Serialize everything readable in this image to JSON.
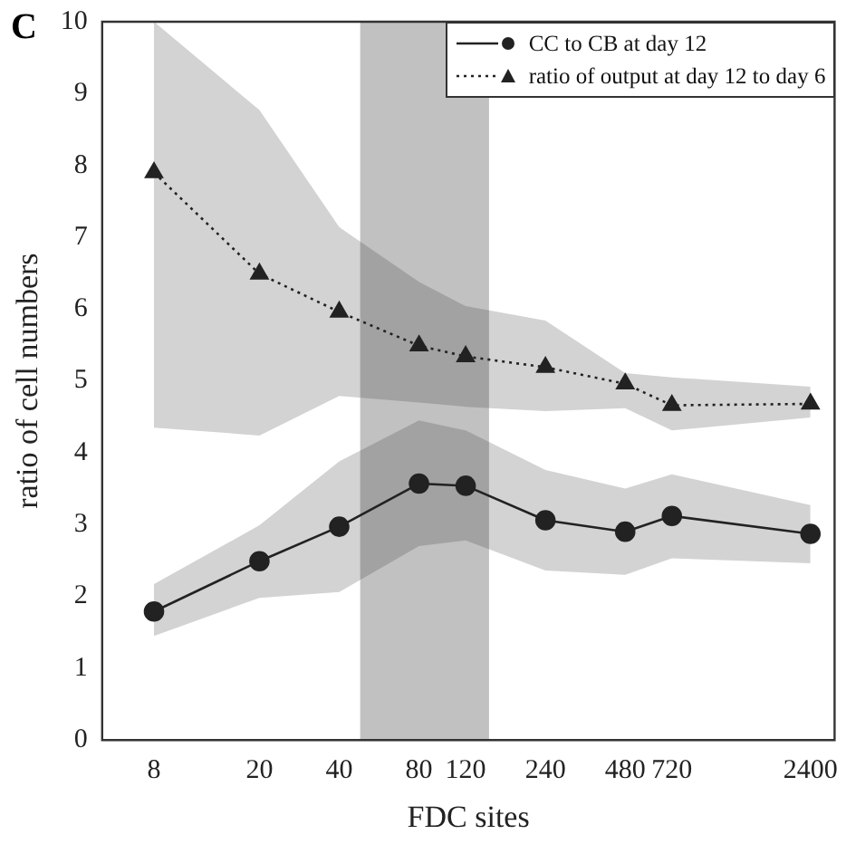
{
  "chart_data": {
    "type": "line",
    "xlabel": "FDC sites",
    "ylabel": "ratio of cell numbers",
    "annotations": [
      "C"
    ],
    "log": "x",
    "xlim": [
      5.1,
      2960
    ],
    "xticks": [
      8,
      20,
      40,
      80,
      120,
      240,
      480,
      720,
      2400
    ],
    "ylim": [
      0,
      10
    ],
    "yticks": [
      0,
      1,
      2,
      3,
      4,
      5,
      6,
      7,
      8,
      9,
      10
    ],
    "x": [
      8,
      20,
      40,
      80,
      120,
      240,
      480,
      720,
      2400
    ],
    "legend": "top right",
    "grid": false,
    "bands": [
      {
        "axis": "x",
        "from": 48,
        "to": 147,
        "color": "#333333"
      }
    ],
    "series": [
      {
        "name": "CC to CB at day 12",
        "color": "#222222",
        "marker": "circle",
        "line_style": "solid",
        "values": [
          1.79,
          2.49,
          2.97,
          3.57,
          3.54,
          3.06,
          2.9,
          3.12,
          2.87
        ],
        "lower": [
          1.45,
          1.98,
          2.06,
          2.7,
          2.78,
          2.36,
          2.3,
          2.53,
          2.46
        ],
        "upper": [
          2.17,
          2.99,
          3.88,
          4.45,
          4.31,
          3.76,
          3.5,
          3.7,
          3.27
        ]
      },
      {
        "name": "ratio of output at day 12 to day 6",
        "color": "#222222",
        "marker": "triangle",
        "line_style": "dotted",
        "values": [
          7.9,
          6.49,
          5.96,
          5.49,
          5.34,
          5.19,
          4.96,
          4.66,
          4.68
        ],
        "lower": [
          4.35,
          4.24,
          4.79,
          4.7,
          4.64,
          4.58,
          4.62,
          4.31,
          4.49
        ],
        "upper": [
          10,
          8.77,
          7.14,
          6.38,
          6.04,
          5.84,
          5.11,
          5.05,
          4.92
        ]
      }
    ]
  }
}
